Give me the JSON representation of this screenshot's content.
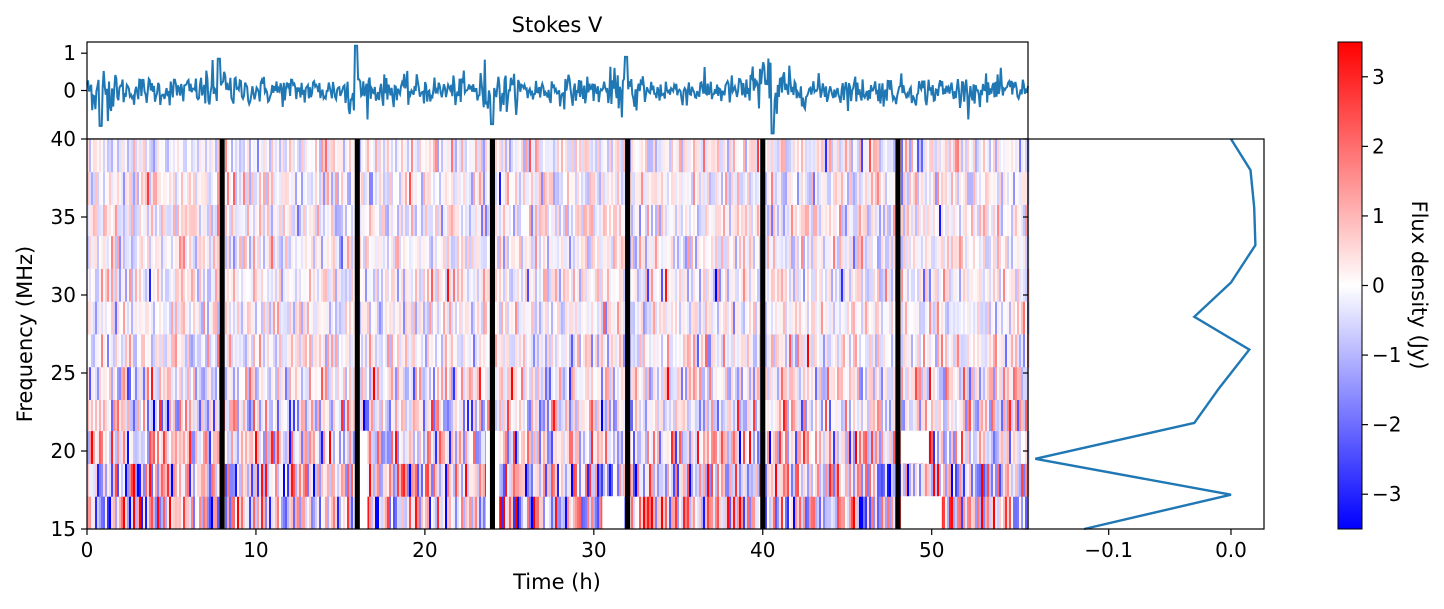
{
  "chart_data": [
    {
      "panel": "time-series",
      "type": "line",
      "title": "Stokes V",
      "xlim": [
        0,
        55.7
      ],
      "ylim": [
        -1.3,
        1.3
      ],
      "yticks": [
        1,
        0
      ],
      "ytick_labels": [
        "1",
        "0"
      ],
      "color": "#1f77b4",
      "spike_times": [
        0.8,
        7.8,
        15.9,
        24.0,
        31.9,
        40.0,
        40.6
      ],
      "spike_values": [
        -0.95,
        0.85,
        1.2,
        -0.9,
        0.9,
        0.7,
        -1.15
      ],
      "noise_amplitude": 0.35
    },
    {
      "panel": "dynamic-spectrum",
      "type": "heatmap",
      "xlabel": "Time (h)",
      "ylabel": "Frequency (MHz)",
      "xlim": [
        0,
        55.7
      ],
      "ylim": [
        15,
        40
      ],
      "xticks": [
        0,
        10,
        20,
        30,
        40,
        50
      ],
      "xtick_labels": [
        "0",
        "10",
        "20",
        "30",
        "40",
        "50"
      ],
      "yticks": [
        40,
        35,
        30,
        25,
        20,
        15
      ],
      "ytick_labels": [
        "40",
        "35",
        "30",
        "25",
        "20",
        "15"
      ],
      "channel_edges_mhz": [
        15,
        17.1,
        19.2,
        21.3,
        23.3,
        25.4,
        27.5,
        29.6,
        31.7,
        33.8,
        35.8,
        37.9,
        40
      ],
      "channel_noise_std": [
        2.2,
        1.9,
        1.7,
        1.4,
        1.1,
        0.9,
        0.8,
        0.8,
        0.8,
        0.8,
        0.8,
        0.8
      ],
      "gap_times_h": [
        8,
        16,
        24,
        32,
        40,
        48
      ],
      "gap_width_h": 0.3,
      "blank_regions": [
        {
          "t0": 16.0,
          "t1": 16.6,
          "f0": 15,
          "f1": 21.3
        },
        {
          "t0": 23.6,
          "t1": 24.4,
          "f0": 15,
          "f1": 21.3
        },
        {
          "t0": 48.2,
          "t1": 49.8,
          "f0": 19.2,
          "f1": 21.3
        },
        {
          "t0": 30.5,
          "t1": 31.8,
          "f0": 15,
          "f1": 17.1
        },
        {
          "t0": 48.2,
          "t1": 50.6,
          "f0": 15,
          "f1": 17.1
        }
      ],
      "vmin": -3.5,
      "vmax": 3.5
    },
    {
      "panel": "spectrum",
      "type": "line",
      "xlim": [
        -0.166,
        0.027
      ],
      "xticks": [
        -0.1,
        0.0
      ],
      "xtick_labels": [
        "−0.1",
        "0.0"
      ],
      "ylim": [
        15,
        40
      ],
      "frequency": [
        15.0,
        17.2,
        19.5,
        21.8,
        24.0,
        26.5,
        28.6,
        30.8,
        33.2,
        35.6,
        38.0,
        40.0
      ],
      "flux": [
        -0.12,
        0.0,
        -0.16,
        -0.03,
        -0.01,
        0.015,
        -0.03,
        0.0,
        0.02,
        0.019,
        0.016,
        -0.0
      ],
      "color": "#1f77b4"
    },
    {
      "panel": "colorbar",
      "type": "colorbar",
      "label": "Flux density (Jy)",
      "range": [
        -3.5,
        3.5
      ],
      "ticks": [
        3,
        2,
        1,
        0,
        -1,
        -2,
        -3
      ],
      "tick_labels": [
        "3",
        "2",
        "1",
        "0",
        "−1",
        "−2",
        "−3"
      ],
      "cmap": "bwr"
    }
  ]
}
